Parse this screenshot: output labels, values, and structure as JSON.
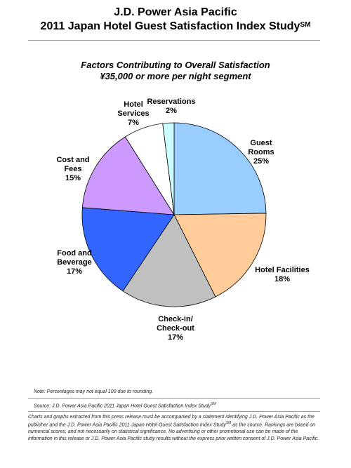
{
  "header": {
    "line1": "J.D. Power Asia Pacific",
    "line2": "2011 Japan Hotel Guest Satisfaction Index Study",
    "line2_sup": "SM"
  },
  "chart_data": {
    "type": "pie",
    "title": "Factors Contributing to Overall Satisfaction",
    "subtitle": "¥35,000 or more per night segment",
    "slices": [
      {
        "label": "Guest Rooms",
        "value": 25,
        "value_label": "25%",
        "color": "#99CCFF"
      },
      {
        "label": "Hotel Facilities",
        "value": 18,
        "value_label": "18%",
        "color": "#FFCC99"
      },
      {
        "label": "Check-in/ Check-out",
        "value": 17,
        "value_label": "17%",
        "color": "#C0C0C0"
      },
      {
        "label": "Food and Beverage",
        "value": 17,
        "value_label": "17%",
        "color": "#3366FF"
      },
      {
        "label": "Cost and Fees",
        "value": 15,
        "value_label": "15%",
        "color": "#CC99FF"
      },
      {
        "label": "Hotel Services",
        "value": 7,
        "value_label": "7%",
        "color": "#FFFFFF"
      },
      {
        "label": "Reservations",
        "value": 2,
        "value_label": "2%",
        "color": "#CCFFFF"
      }
    ]
  },
  "footer": {
    "note": "Note: Percentages may not equal 100 due to rounding.",
    "source": "Source: J.D. Power Asia Pacific 2011 Japan Hotel Guest Satisfaction Index Study",
    "source_sup": "SM",
    "disclaimer_part1": "Charts and graphs extracted from this press release must be accompanied by a statement identifying J.D. Power Asia Pacific as the publisher and the J.D. Power Asia Pacific 2011 Japan Hotel Guest Satisfaction Index Study",
    "disclaimer_sup": "SM",
    "disclaimer_part2": " as the source. Rankings are based on numerical scores, and not necessarily on statistical significance. No advertising or other promotional use can be made of the information in this release or J.D. Power Asia Pacific study results without the express prior written consent of J.D. Power Asia Pacific."
  }
}
